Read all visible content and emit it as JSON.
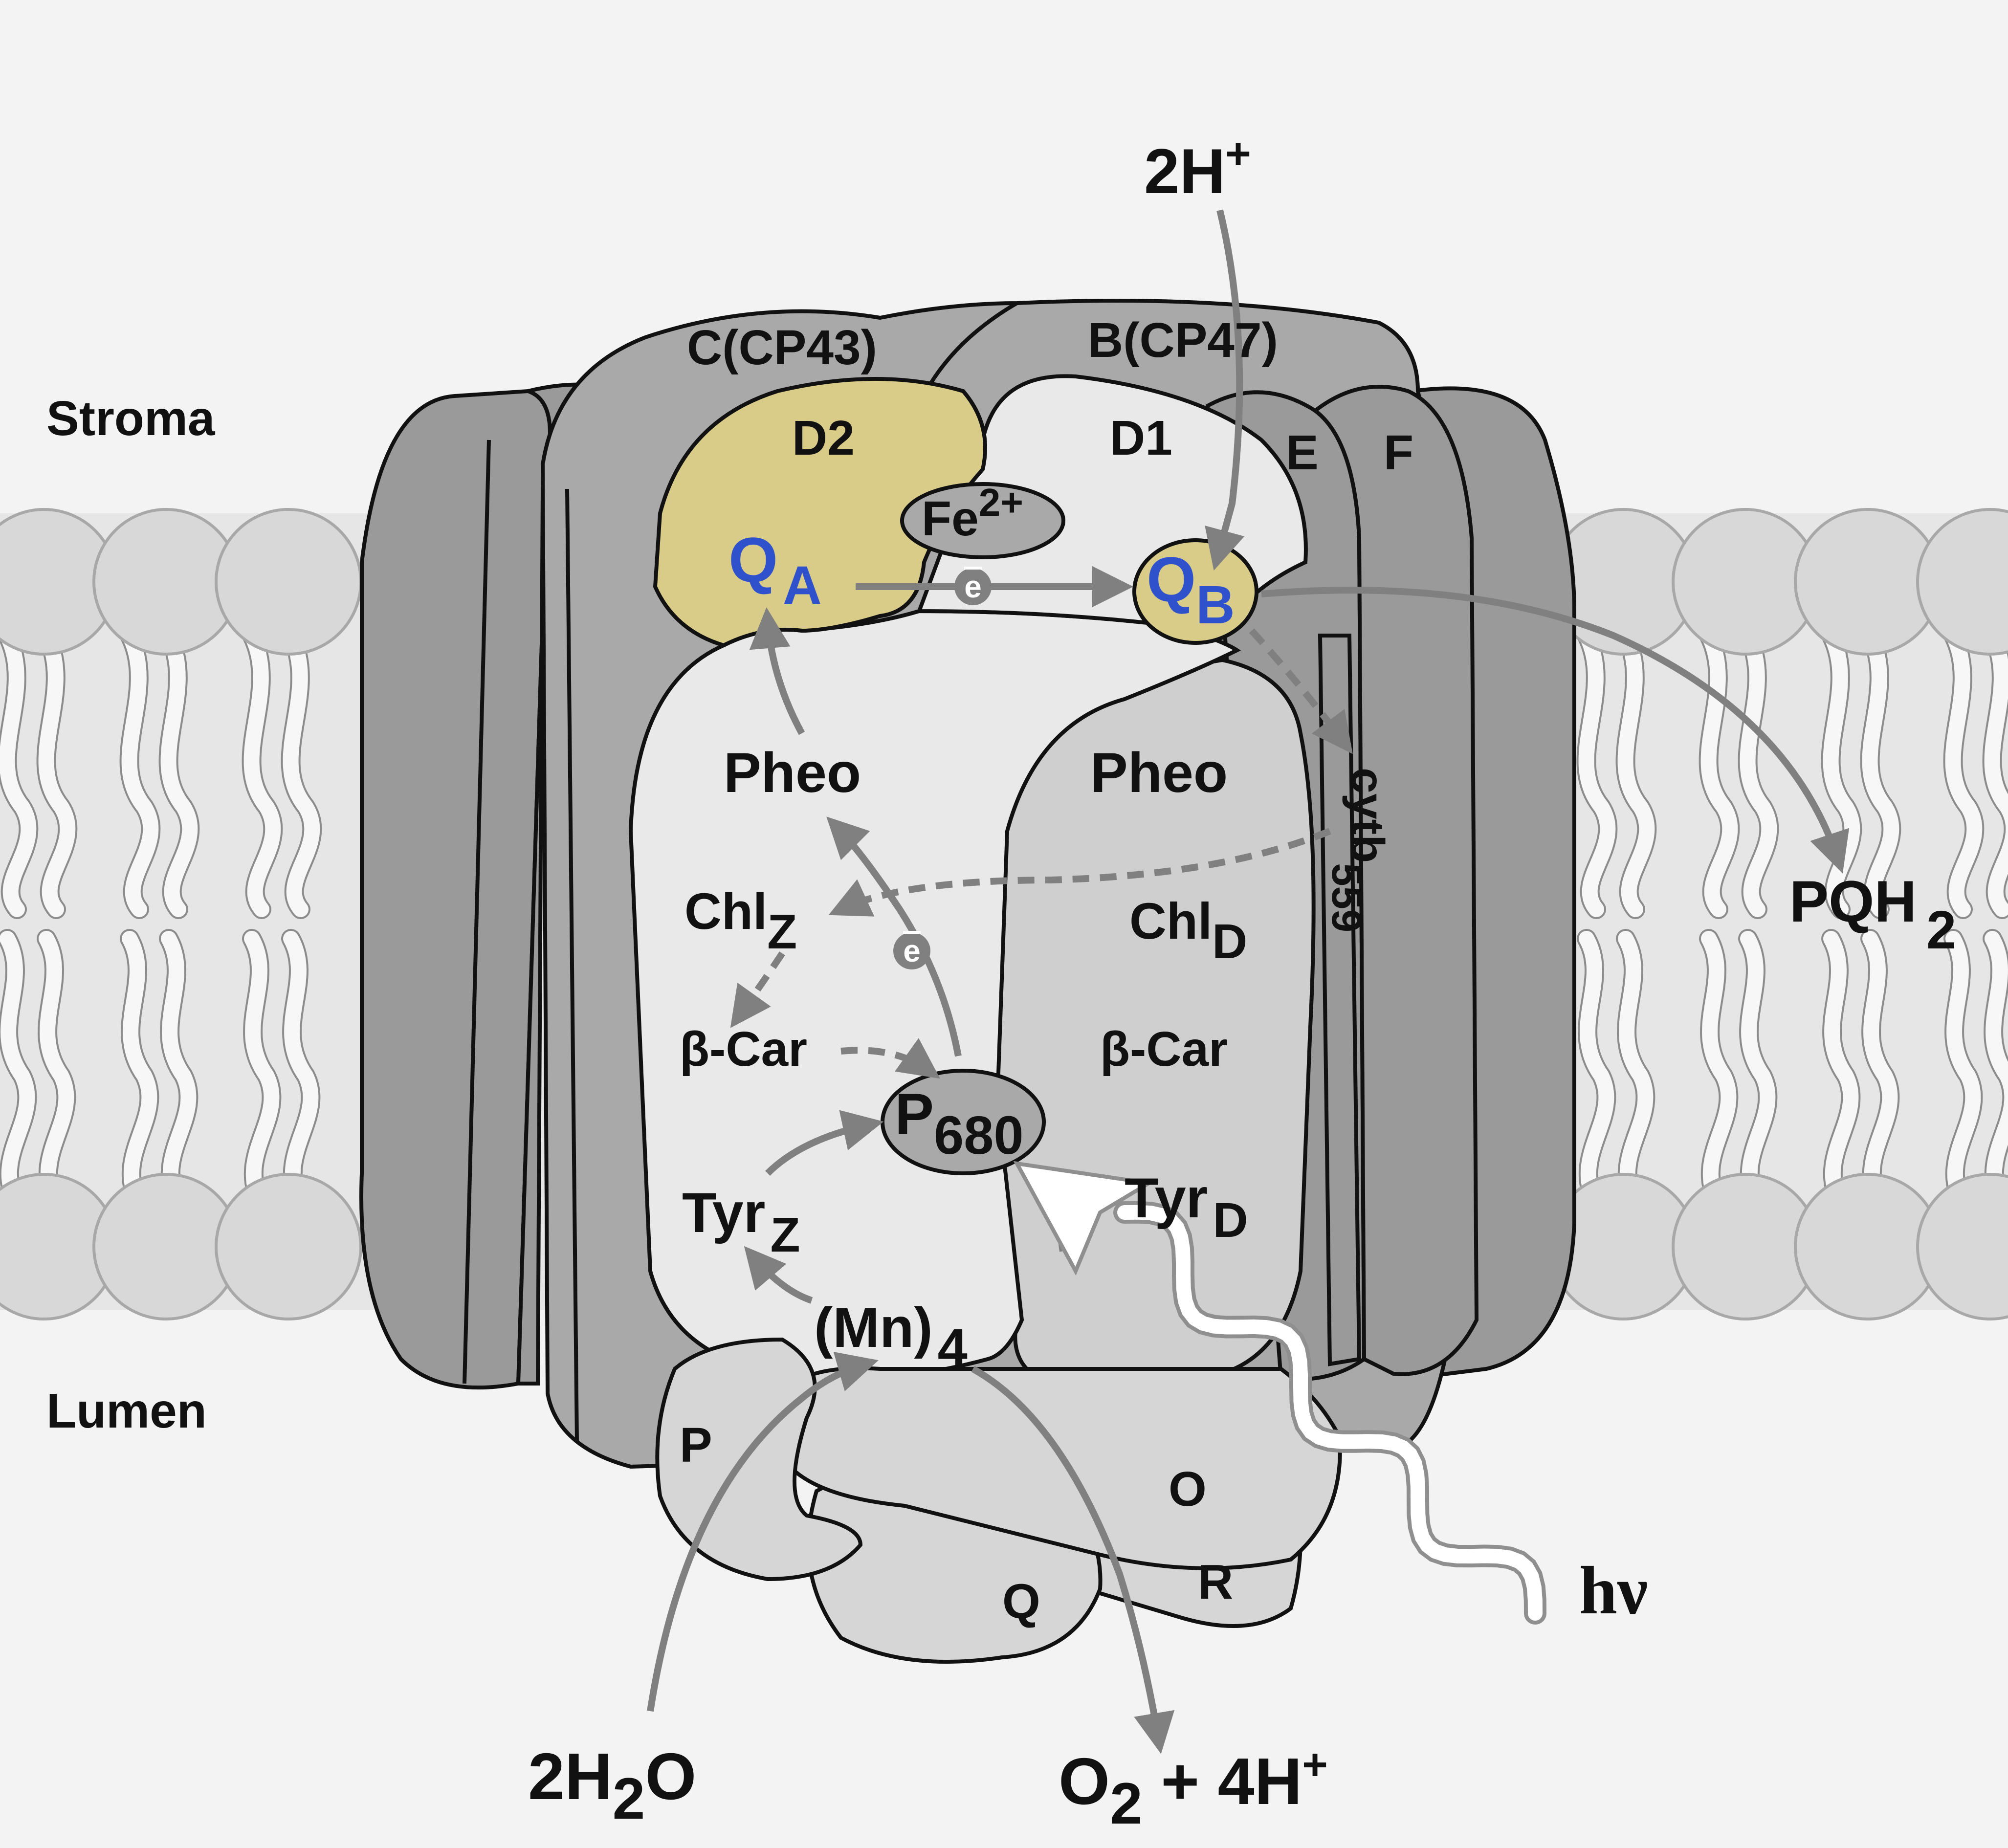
{
  "regions": {
    "stroma": "Stroma",
    "lumen": "Lumen"
  },
  "subunits": {
    "c": "C(CP43)",
    "b": "B(CP47)",
    "d2": "D2",
    "d1": "D1",
    "e": "E",
    "f": "F",
    "p": "P",
    "o": "O",
    "q": "Q",
    "r": "R"
  },
  "cofactors": {
    "fe": {
      "base": "Fe",
      "sup": "2+"
    },
    "qa": {
      "base": "Q",
      "sub": "A"
    },
    "qb": {
      "base": "Q",
      "sub": "B"
    },
    "pheo_left": "Pheo",
    "pheo_right": "Pheo",
    "chlz": {
      "base": "Chl",
      "sub": "Z"
    },
    "chld": {
      "base": "Chl",
      "sub": "D"
    },
    "bcar_left": "β-Car",
    "bcar_right": "β-Car",
    "p680": {
      "base": "P",
      "sub": "680"
    },
    "tyrz": {
      "base": "Tyr",
      "sub": "Z"
    },
    "tyrd": {
      "base": "Tyr",
      "sub": "D"
    },
    "mn": {
      "base": "(Mn)",
      "sub": "4"
    },
    "cytb": {
      "base": "cytb",
      "sub": "559"
    }
  },
  "electron": "e",
  "reactants": {
    "h_top": {
      "base": "2H",
      "sup": "+"
    },
    "pqh2": {
      "base": "PQH",
      "sub": "2"
    },
    "water": {
      "a": "2H",
      "sub": "2",
      "b": "O"
    },
    "oxygen": {
      "a": "O",
      "sub": "2",
      "b": " + 4H",
      "sup": "+"
    },
    "light": "hν"
  },
  "colors": {
    "background": "#f3f3f3",
    "membrane": "#e6e6e6",
    "lipid_head": "#d8d8d8",
    "outer_helix": "#9a9a9a",
    "cp_subunits": "#a9a9a9",
    "d1_region": "#e9e9e9",
    "d2_region": "#d9cc89",
    "right_core": "#cfcfcf",
    "extrinsic": "#d6d6d6",
    "arrow": "#808080",
    "label_blue": "#2f52cc"
  }
}
